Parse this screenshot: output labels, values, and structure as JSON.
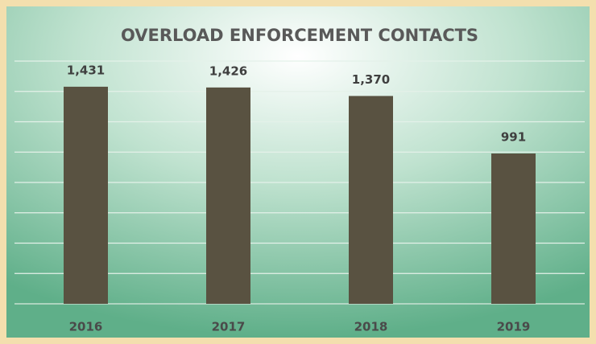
{
  "chart_data": {
    "type": "bar",
    "title": "OVERLOAD ENFORCEMENT CONTACTS",
    "categories": [
      "2016",
      "2017",
      "2018",
      "2019"
    ],
    "values": [
      1431,
      1426,
      1370,
      991
    ],
    "value_labels": [
      "1,431",
      "1,426",
      "1,370",
      "991"
    ],
    "color": "#595241",
    "ylim": [
      0,
      1600
    ],
    "yticks": [
      0,
      200,
      400,
      600,
      800,
      1000,
      1200,
      1400,
      1600
    ],
    "grid": true
  }
}
